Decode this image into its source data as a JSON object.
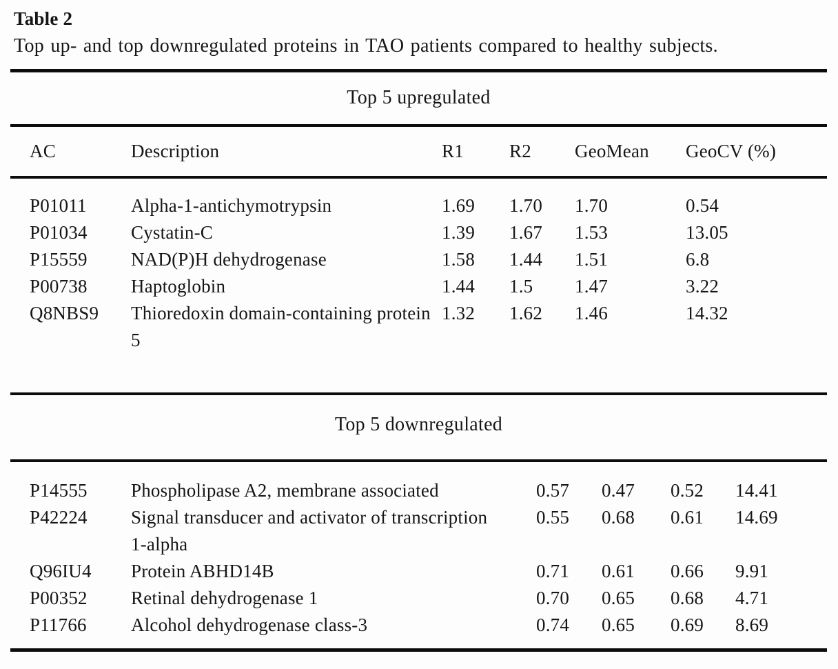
{
  "caption": {
    "label": "Table 2",
    "text": "Top up- and top downregulated proteins in TAO patients compared to healthy subjects."
  },
  "sections": [
    {
      "title": "Top 5 upregulated",
      "columns": [
        "AC",
        "Description",
        "R1",
        "R2",
        "GeoMean",
        "GeoCV (%)"
      ],
      "rows": [
        [
          "P01011",
          "Alpha-1-antichymotrypsin",
          "1.69",
          "1.70",
          "1.70",
          "0.54"
        ],
        [
          "P01034",
          "Cystatin-C",
          "1.39",
          "1.67",
          "1.53",
          "13.05"
        ],
        [
          "P15559",
          "NAD(P)H dehydrogenase",
          "1.58",
          "1.44",
          "1.51",
          "6.8"
        ],
        [
          "P00738",
          "Haptoglobin",
          "1.44",
          "1.5",
          "1.47",
          "3.22"
        ],
        [
          "Q8NBS9",
          "Thioredoxin domain-containing protein 5",
          "1.32",
          "1.62",
          "1.46",
          "14.32"
        ]
      ]
    },
    {
      "title": "Top 5 downregulated",
      "rows": [
        [
          "P14555",
          "Phospholipase A2, membrane associated",
          "0.57",
          "0.47",
          "0.52",
          "14.41"
        ],
        [
          "P42224",
          "Signal transducer and activator of transcription 1-alpha",
          "0.55",
          "0.68",
          "0.61",
          "14.69"
        ],
        [
          "Q96IU4",
          "Protein ABHD14B",
          "0.71",
          "0.61",
          "0.66",
          "9.91"
        ],
        [
          "P00352",
          "Retinal dehydrogenase 1",
          "0.70",
          "0.65",
          "0.68",
          "4.71"
        ],
        [
          "P11766",
          "Alcohol dehydrogenase class-3",
          "0.74",
          "0.65",
          "0.69",
          "8.69"
        ]
      ]
    }
  ],
  "colors": {
    "text": "#161616",
    "rule": "#0c0c0c",
    "background": "#fdfdfd"
  }
}
